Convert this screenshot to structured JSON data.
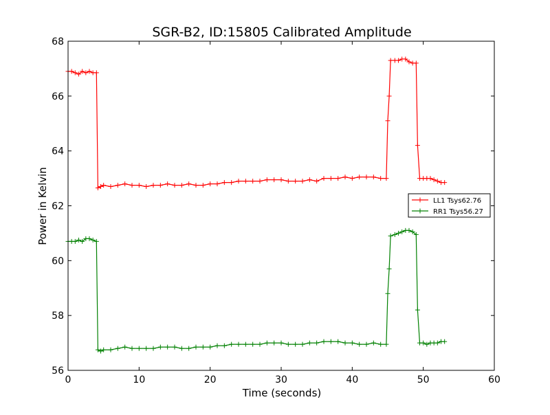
{
  "chart_data": {
    "type": "line",
    "title": "SGR-B2, ID:15805 Calibrated Amplitude",
    "xlabel": "Time (seconds)",
    "ylabel": "Power in Kelvin",
    "xlim": [
      0,
      60
    ],
    "ylim": [
      56,
      68
    ],
    "xticks": [
      0,
      10,
      20,
      30,
      40,
      50,
      60
    ],
    "yticks": [
      56,
      58,
      60,
      62,
      64,
      66,
      68
    ],
    "grid": false,
    "legend_position": "right",
    "series": [
      {
        "name": "LL1 Tsys62.76",
        "color": "#ff0000",
        "marker": "plus",
        "x": [
          0,
          0.5,
          1,
          1.5,
          2,
          2.5,
          3,
          3.5,
          4,
          4.2,
          4.6,
          5,
          6,
          7,
          8,
          9,
          10,
          11,
          12,
          13,
          14,
          15,
          16,
          17,
          18,
          19,
          20,
          21,
          22,
          23,
          24,
          25,
          26,
          27,
          28,
          29,
          30,
          31,
          32,
          33,
          34,
          35,
          36,
          37,
          38,
          39,
          40,
          41,
          42,
          43,
          44,
          44.8,
          45.0,
          45.2,
          45.4,
          46,
          46.5,
          47,
          47.5,
          48,
          48.5,
          49,
          49.2,
          49.5,
          50,
          50.5,
          51,
          51.5,
          52,
          52.5,
          53
        ],
        "y": [
          66.9,
          66.9,
          66.85,
          66.8,
          66.9,
          66.85,
          66.9,
          66.85,
          66.85,
          62.65,
          62.7,
          62.75,
          62.7,
          62.75,
          62.8,
          62.75,
          62.75,
          62.7,
          62.75,
          62.75,
          62.8,
          62.75,
          62.75,
          62.8,
          62.75,
          62.75,
          62.8,
          62.8,
          62.85,
          62.85,
          62.9,
          62.9,
          62.9,
          62.9,
          62.95,
          62.95,
          62.95,
          62.9,
          62.9,
          62.9,
          62.95,
          62.9,
          63.0,
          63.0,
          63.0,
          63.05,
          63.0,
          63.05,
          63.05,
          63.05,
          63.0,
          63.0,
          65.1,
          66.0,
          67.3,
          67.3,
          67.3,
          67.35,
          67.35,
          67.25,
          67.2,
          67.2,
          64.2,
          63.0,
          63.0,
          63.0,
          63.0,
          62.95,
          62.9,
          62.85,
          62.85
        ]
      },
      {
        "name": "RR1 Tsys56.27",
        "color": "#008000",
        "marker": "plus",
        "x": [
          0,
          0.5,
          1,
          1.5,
          2,
          2.5,
          3,
          3.5,
          4,
          4.2,
          4.6,
          5,
          6,
          7,
          8,
          9,
          10,
          11,
          12,
          13,
          14,
          15,
          16,
          17,
          18,
          19,
          20,
          21,
          22,
          23,
          24,
          25,
          26,
          27,
          28,
          29,
          30,
          31,
          32,
          33,
          34,
          35,
          36,
          37,
          38,
          39,
          40,
          41,
          42,
          43,
          44,
          44.8,
          45.0,
          45.2,
          45.4,
          46,
          46.5,
          47,
          47.5,
          48,
          48.5,
          49,
          49.2,
          49.5,
          50,
          50.5,
          51,
          51.5,
          52,
          52.5,
          53
        ],
        "y": [
          60.7,
          60.7,
          60.7,
          60.75,
          60.7,
          60.8,
          60.8,
          60.75,
          60.7,
          56.75,
          56.7,
          56.75,
          56.75,
          56.8,
          56.85,
          56.8,
          56.8,
          56.8,
          56.8,
          56.85,
          56.85,
          56.85,
          56.8,
          56.8,
          56.85,
          56.85,
          56.85,
          56.9,
          56.9,
          56.95,
          56.95,
          56.95,
          56.95,
          56.95,
          57.0,
          57.0,
          57.0,
          56.95,
          56.95,
          56.95,
          57.0,
          57.0,
          57.05,
          57.05,
          57.05,
          57.0,
          57.0,
          56.95,
          56.95,
          57.0,
          56.95,
          56.95,
          58.8,
          59.7,
          60.9,
          60.95,
          61.0,
          61.05,
          61.1,
          61.1,
          61.05,
          60.95,
          58.2,
          57.0,
          57.0,
          56.95,
          57.0,
          57.0,
          57.0,
          57.05,
          57.05
        ]
      }
    ]
  }
}
